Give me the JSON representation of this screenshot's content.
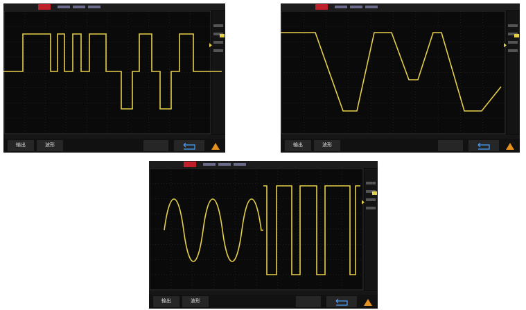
{
  "screens": [
    {
      "buttons": [
        "输出",
        "波形"
      ]
    },
    {
      "buttons": [
        "输出",
        "波形"
      ]
    },
    {
      "buttons": [
        "输出",
        "波形"
      ]
    }
  ]
}
